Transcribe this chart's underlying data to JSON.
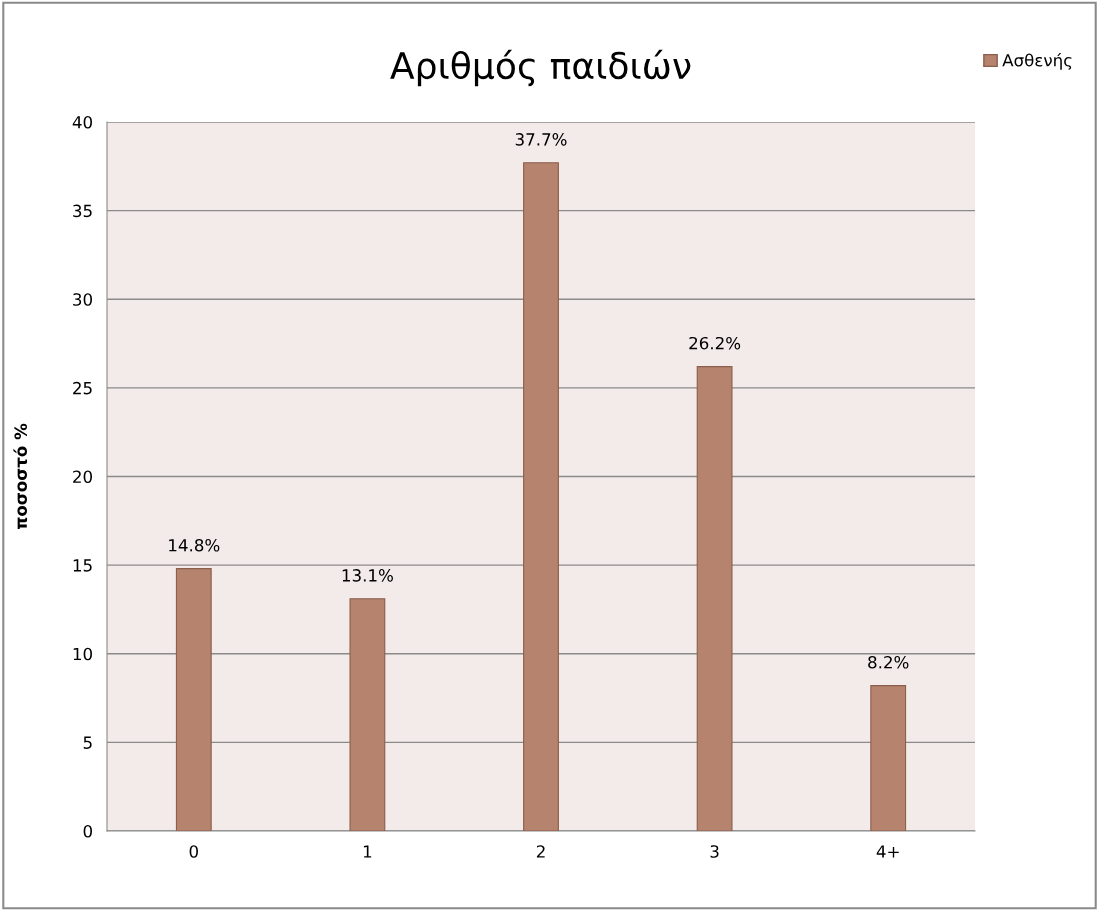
{
  "chart_data": {
    "type": "bar",
    "title": "Αριθμός παιδιών",
    "ylabel": "ποσοστό %",
    "categories": [
      "0",
      "1",
      "2",
      "3",
      "4+"
    ],
    "series": [
      {
        "name": "Ασθενής",
        "color": "#b5836e",
        "values": [
          14.8,
          13.1,
          37.7,
          26.2,
          8.2
        ],
        "value_labels": [
          "14.8%",
          "13.1%",
          "37.7%",
          "26.2%",
          "8.2%"
        ]
      }
    ],
    "ylim": [
      0,
      40
    ],
    "yticks": [
      0,
      5,
      10,
      15,
      20,
      25,
      30,
      35,
      40
    ],
    "grid": "y",
    "legend": "top right"
  }
}
